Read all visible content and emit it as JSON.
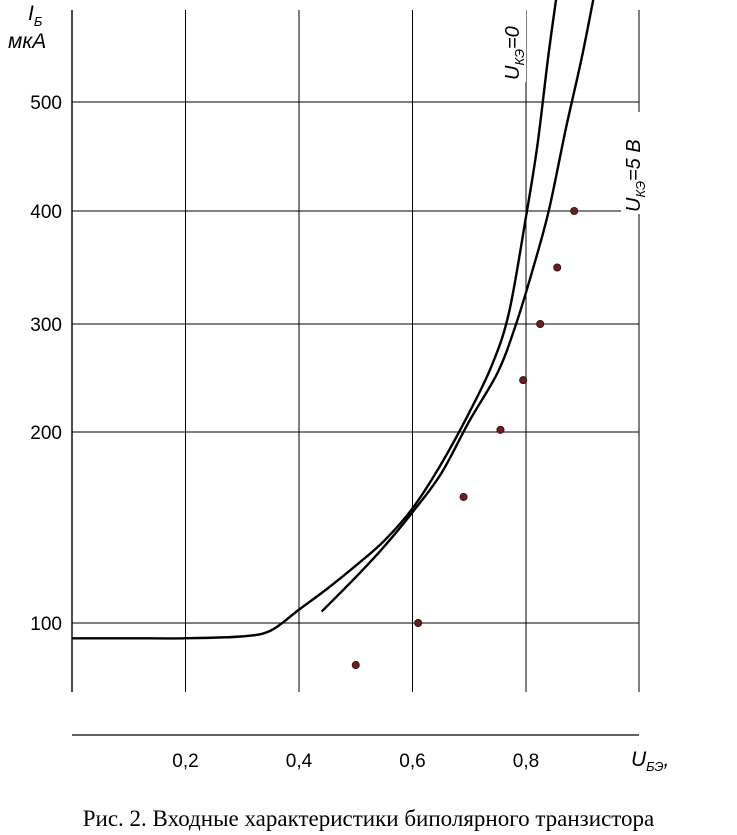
{
  "chart_data": {
    "type": "line",
    "x": {
      "label_symbol": "U",
      "label_sub": "БЭ",
      "label_suffix": ",",
      "ticks": [
        "0,2",
        "0,4",
        "0,6",
        "0,8"
      ],
      "tick_values": [
        0.2,
        0.4,
        0.6,
        0.8
      ]
    },
    "y": {
      "label_symbol": "I",
      "label_sub": "Б",
      "unit": "мкА",
      "ticks": [
        "100",
        "200",
        "300",
        "400",
        "500"
      ],
      "tick_values": [
        100,
        200,
        300,
        400,
        500
      ]
    },
    "grid": true,
    "series": [
      {
        "name_symbol": "U",
        "name_sub": "КЭ",
        "name_suffix": "=0",
        "points": [
          [
            0.0,
            92
          ],
          [
            0.1,
            92
          ],
          [
            0.2,
            92
          ],
          [
            0.3,
            93
          ],
          [
            0.35,
            96
          ],
          [
            0.4,
            107
          ],
          [
            0.45,
            118
          ],
          [
            0.5,
            130
          ],
          [
            0.55,
            143
          ],
          [
            0.6,
            160
          ],
          [
            0.65,
            183
          ],
          [
            0.7,
            218
          ],
          [
            0.74,
            262
          ],
          [
            0.77,
            310
          ],
          [
            0.8,
            395
          ],
          [
            0.82,
            460
          ],
          [
            0.84,
            545
          ],
          [
            0.86,
            620
          ]
        ]
      },
      {
        "name_symbol": "U",
        "name_sub": "КЭ",
        "name_suffix": "=5 В",
        "points": [
          [
            0.44,
            106
          ],
          [
            0.5,
            124
          ],
          [
            0.55,
            140
          ],
          [
            0.6,
            158
          ],
          [
            0.65,
            178
          ],
          [
            0.7,
            210
          ],
          [
            0.75,
            255
          ],
          [
            0.78,
            296
          ],
          [
            0.81,
            345
          ],
          [
            0.84,
            400
          ],
          [
            0.87,
            475
          ],
          [
            0.9,
            545
          ],
          [
            0.93,
            625
          ]
        ]
      }
    ],
    "measured_points": [
      [
        0.5,
        78
      ],
      [
        0.61,
        100
      ],
      [
        0.69,
        166
      ],
      [
        0.755,
        202
      ],
      [
        0.795,
        248
      ],
      [
        0.825,
        300
      ],
      [
        0.855,
        350
      ],
      [
        0.885,
        400
      ]
    ]
  },
  "caption": "Рис. 2.   Входные характеристики биполярного транзистора"
}
